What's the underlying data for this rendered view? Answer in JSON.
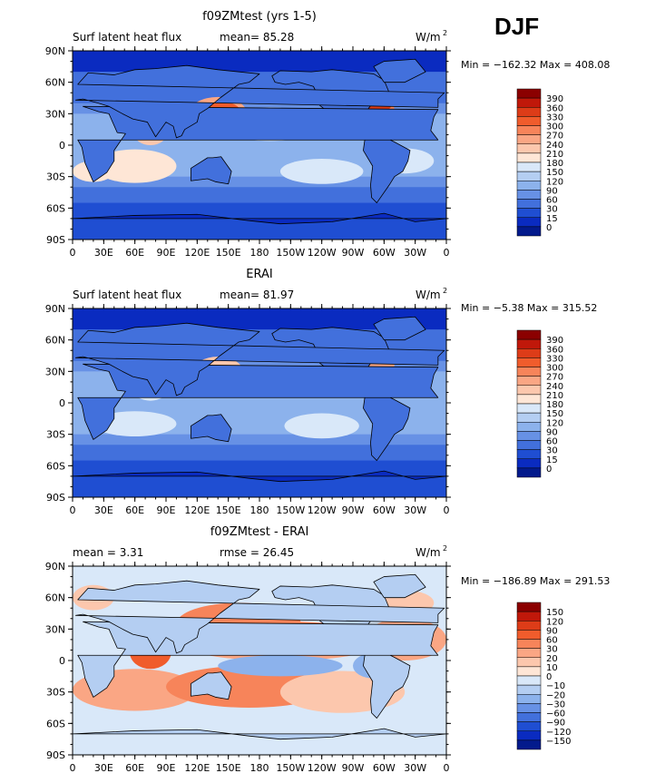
{
  "season": "DJF",
  "chart_data": [
    {
      "type": "heatmap",
      "title": "f09ZMtest (yrs 1-5)",
      "left_label": "Surf latent heat flux",
      "center_label": "mean=  85.28",
      "units_label": "W/m",
      "units_sup": "2",
      "minmax_label": "Min = −162.32  Max = 408.08",
      "x_ticks": [
        "0",
        "30E",
        "60E",
        "90E",
        "120E",
        "150E",
        "180",
        "150W",
        "120W",
        "90W",
        "60W",
        "30W",
        "0"
      ],
      "y_ticks": [
        "90N",
        "60N",
        "30N",
        "0",
        "30S",
        "60S",
        "90S"
      ],
      "xlim": [
        0,
        360
      ],
      "ylim": [
        -90,
        90
      ],
      "colorbar": {
        "labels": [
          "390",
          "360",
          "330",
          "300",
          "270",
          "240",
          "210",
          "180",
          "150",
          "120",
          "90",
          "60",
          "30",
          "15",
          "0"
        ],
        "colors": [
          "#8b0000",
          "#c0180a",
          "#dd3c18",
          "#f05c2c",
          "#f7845a",
          "#faa684",
          "#fcc7ad",
          "#fee6d6",
          "#d9e8f9",
          "#b4cef2",
          "#8cb2ec",
          "#6791e5",
          "#4270dc",
          "#1f4ed2",
          "#0a2bc0",
          "#031a8c"
        ]
      }
    },
    {
      "type": "heatmap",
      "title": "ERAI",
      "left_label": "Surf latent heat flux",
      "center_label": "mean=  81.97",
      "units_label": "W/m",
      "units_sup": "2",
      "minmax_label": "Min =  −5.38  Max = 315.52",
      "x_ticks": [
        "0",
        "30E",
        "60E",
        "90E",
        "120E",
        "150E",
        "180",
        "150W",
        "120W",
        "90W",
        "60W",
        "30W",
        "0"
      ],
      "y_ticks": [
        "90N",
        "60N",
        "30N",
        "0",
        "30S",
        "60S",
        "90S"
      ],
      "xlim": [
        0,
        360
      ],
      "ylim": [
        -90,
        90
      ],
      "colorbar": {
        "labels": [
          "390",
          "360",
          "330",
          "300",
          "270",
          "240",
          "210",
          "180",
          "150",
          "120",
          "90",
          "60",
          "30",
          "15",
          "0"
        ],
        "colors": [
          "#8b0000",
          "#c0180a",
          "#dd3c18",
          "#f05c2c",
          "#f7845a",
          "#faa684",
          "#fcc7ad",
          "#fee6d6",
          "#d9e8f9",
          "#b4cef2",
          "#8cb2ec",
          "#6791e5",
          "#4270dc",
          "#1f4ed2",
          "#0a2bc0",
          "#031a8c"
        ]
      }
    },
    {
      "type": "heatmap",
      "title": "f09ZMtest - ERAI",
      "left_label": "mean =    3.31",
      "center_label": "rmse =  26.45",
      "units_label": "W/m",
      "units_sup": "2",
      "minmax_label": "Min = −186.89  Max = 291.53",
      "x_ticks": [
        "0",
        "30E",
        "60E",
        "90E",
        "120E",
        "150E",
        "180",
        "150W",
        "120W",
        "90W",
        "60W",
        "30W",
        "0"
      ],
      "y_ticks": [
        "90N",
        "60N",
        "30N",
        "0",
        "30S",
        "60S",
        "90S"
      ],
      "xlim": [
        0,
        360
      ],
      "ylim": [
        -90,
        90
      ],
      "colorbar": {
        "labels": [
          "150",
          "120",
          "90",
          "60",
          "30",
          "20",
          "10",
          "0",
          "−10",
          "−20",
          "−30",
          "−60",
          "−90",
          "−120",
          "−150"
        ],
        "colors": [
          "#8b0000",
          "#c0180a",
          "#dd3c18",
          "#f05c2c",
          "#f7845a",
          "#faa684",
          "#fcc7ad",
          "#fee6d6",
          "#d9e8f9",
          "#b4cef2",
          "#8cb2ec",
          "#6791e5",
          "#4270dc",
          "#1f4ed2",
          "#0a2bc0",
          "#031a8c"
        ]
      }
    }
  ]
}
